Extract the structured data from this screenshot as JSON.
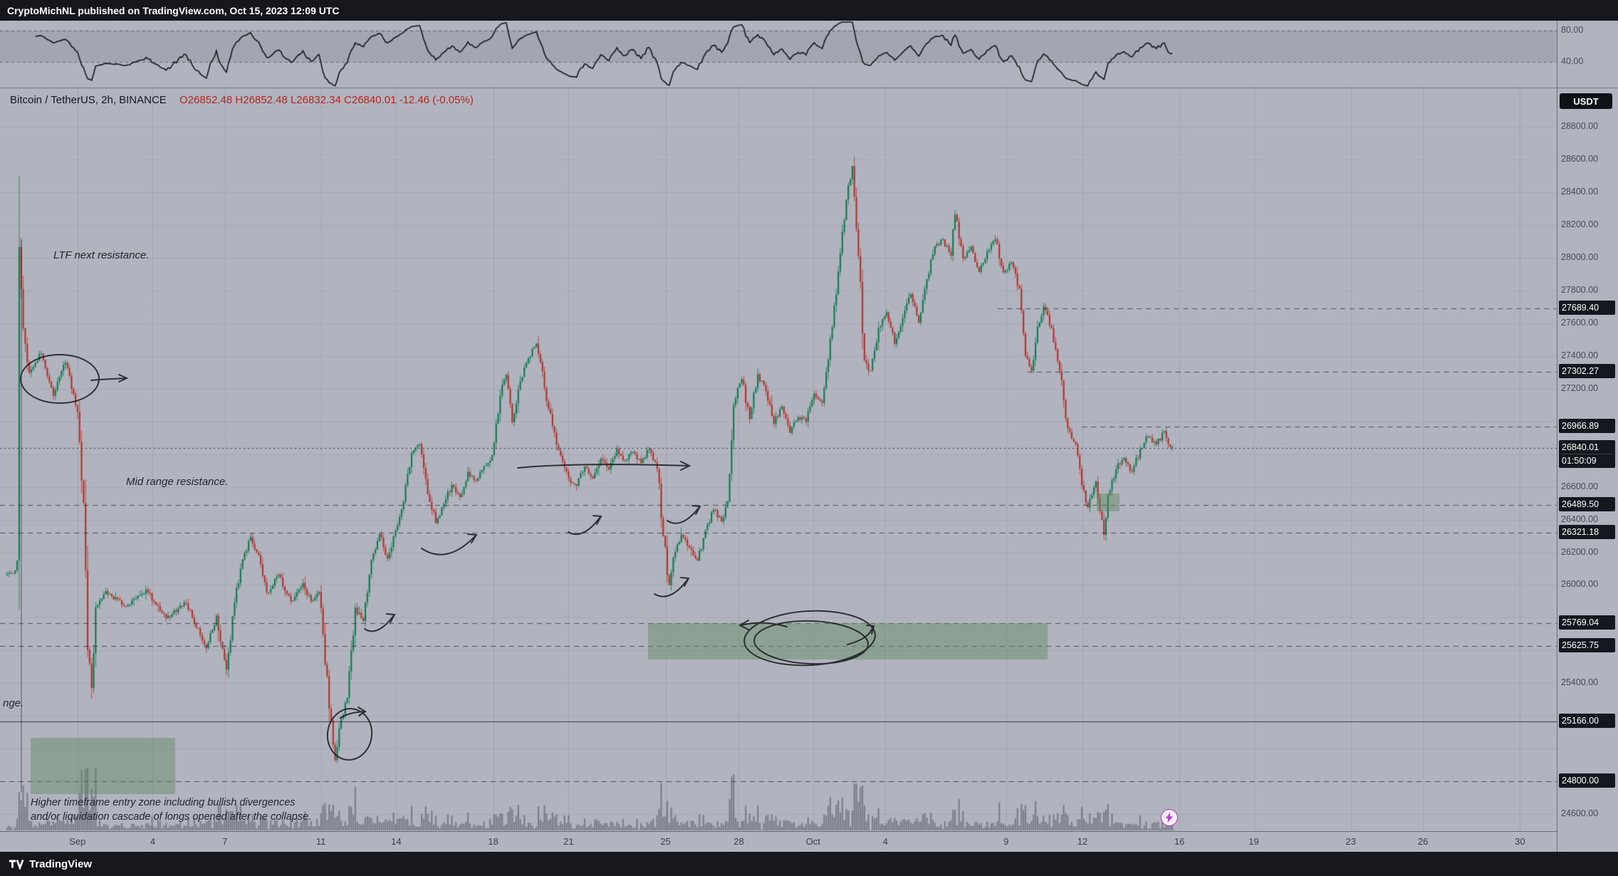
{
  "titlebar": {
    "text": "CryptoMichNL published on TradingView.com, Oct 15, 2023 12:09 UTC"
  },
  "legend": {
    "symbol": "Bitcoin / TetherUS, 2h, BINANCE",
    "values": "O26852.48  H26852.48  L26832.34  C26840.01  -12.46 (-0.05%)"
  },
  "quote_badge": "USDT",
  "annotations": {
    "ltf": "LTF next resistance.",
    "mid": "Mid range resistance.",
    "left_cut": "nge.",
    "entry_line1": "Higher timeframe entry zone including bullish divergences",
    "entry_line2": "and/or liquidation cascade of longs opened after the collapse."
  },
  "footer": {
    "brand": "TradingView"
  },
  "indicator_pane": {
    "type": "RSI",
    "period": 14,
    "upper_label": "80.00",
    "lower_label": "40.00",
    "upper": 80,
    "lower": 40
  },
  "price_axis": {
    "regular_labels": [
      "28800.00",
      "28600.00",
      "28400.00",
      "28200.00",
      "28000.00",
      "27800.00",
      "27600.00",
      "27400.00",
      "27200.00",
      "26600.00",
      "26400.00",
      "26200.00",
      "26000.00",
      "25400.00",
      "24600.00"
    ],
    "levels": [
      {
        "label": "27689.40",
        "price": 27689.4,
        "style": "dashed",
        "from": 0.641
      },
      {
        "label": "27302.27",
        "price": 27302.27,
        "style": "dashed",
        "from": 0.66
      },
      {
        "label": "26966.89",
        "price": 26966.89,
        "style": "dashed",
        "from": 0.695
      },
      {
        "label": "26489.50",
        "price": 26489.5,
        "style": "dashed",
        "from": 0
      },
      {
        "label": "26321.18",
        "price": 26321.18,
        "style": "dashed",
        "from": 0
      },
      {
        "label": "25769.04",
        "price": 25769.04,
        "style": "dashed",
        "from": 0
      },
      {
        "label": "25625.75",
        "price": 25625.75,
        "style": "dashed",
        "from": 0
      },
      {
        "label": "25166.00",
        "price": 25166.0,
        "style": "solid",
        "from": 0
      },
      {
        "label": "24800.00",
        "price": 24800.0,
        "style": "dashed",
        "from": 0
      }
    ],
    "current": {
      "label": "26840.01",
      "countdown": "01:50:09",
      "price": 26840.01
    }
  },
  "time_axis": {
    "labels": [
      {
        "text": "Sep",
        "f": 0.04783
      },
      {
        "text": "4",
        "f": 0.09439
      },
      {
        "text": "7",
        "f": 0.13903
      },
      {
        "text": "11",
        "f": 0.19834
      },
      {
        "text": "14",
        "f": 0.2449
      },
      {
        "text": "18",
        "f": 0.30485
      },
      {
        "text": "21",
        "f": 0.3514
      },
      {
        "text": "25",
        "f": 0.41135
      },
      {
        "text": "28",
        "f": 0.45663
      },
      {
        "text": "Oct",
        "f": 0.50255
      },
      {
        "text": "4",
        "f": 0.54719
      },
      {
        "text": "9",
        "f": 0.62181
      },
      {
        "text": "12",
        "f": 0.66901
      },
      {
        "text": "16",
        "f": 0.72895
      },
      {
        "text": "19",
        "f": 0.77487
      },
      {
        "text": "23",
        "f": 0.83482
      },
      {
        "text": "26",
        "f": 0.87946
      },
      {
        "text": "30",
        "f": 0.93941
      }
    ]
  },
  "zones": [
    {
      "name": "htf-entry-zone",
      "f1": 0.0197,
      "f2": 0.1125,
      "p1": 25065,
      "p2": 24722
    },
    {
      "name": "mid-range-entry-zone",
      "f1": 0.4163,
      "f2": 0.6729,
      "p1": 25769,
      "p2": 25545
    },
    {
      "name": "demand-box",
      "f1": 0.7045,
      "f2": 0.7191,
      "p1": 26560,
      "p2": 26450
    }
  ],
  "colors": {
    "bg": "#b1b4bf",
    "up": "#157a50",
    "down": "#b0362f",
    "badge_bg": "#14171d",
    "axis_text": "#474b55",
    "level_line": "#2a2d35",
    "volume": "rgba(70,74,86,0.5)",
    "rsi_line": "#15171c",
    "zone_fill": "rgba(96,138,96,0.45)",
    "accent_flash": "#ad3bbf"
  },
  "chart_data": {
    "type": "candlestick",
    "symbol": "BTCUSDT",
    "exchange": "BINANCE",
    "timeframe": "2h",
    "title": "Bitcoin / TetherUS 2h with RSI pane, horizontal levels and entry zones",
    "note": "Approximate 2h price path Aug 29 - Oct 15 2023; anchors are [candle_index, price]",
    "candles_total": 580,
    "price_range": [
      24496,
      29040
    ],
    "last_close": 26840.01,
    "indicator": {
      "type": "RSI",
      "period": 14,
      "bands": [
        40,
        80
      ]
    },
    "anchors": [
      [
        0,
        26060
      ],
      [
        5,
        26090
      ],
      [
        6,
        26150
      ],
      [
        7,
        28140
      ],
      [
        9,
        27550
      ],
      [
        12,
        27300
      ],
      [
        18,
        27420
      ],
      [
        24,
        27160
      ],
      [
        30,
        27360
      ],
      [
        36,
        27060
      ],
      [
        39,
        26500
      ],
      [
        41,
        25600
      ],
      [
        43,
        25370
      ],
      [
        45,
        25850
      ],
      [
        50,
        25960
      ],
      [
        60,
        25870
      ],
      [
        70,
        25970
      ],
      [
        80,
        25800
      ],
      [
        90,
        25890
      ],
      [
        100,
        25610
      ],
      [
        105,
        25810
      ],
      [
        110,
        25480
      ],
      [
        114,
        25900
      ],
      [
        118,
        26160
      ],
      [
        122,
        26290
      ],
      [
        126,
        26180
      ],
      [
        130,
        25950
      ],
      [
        136,
        26060
      ],
      [
        142,
        25900
      ],
      [
        148,
        26010
      ],
      [
        152,
        25900
      ],
      [
        156,
        25960
      ],
      [
        158,
        25700
      ],
      [
        161,
        25250
      ],
      [
        164,
        24930
      ],
      [
        167,
        25180
      ],
      [
        170,
        25310
      ],
      [
        174,
        25860
      ],
      [
        178,
        25780
      ],
      [
        182,
        26160
      ],
      [
        186,
        26310
      ],
      [
        190,
        26160
      ],
      [
        194,
        26330
      ],
      [
        198,
        26510
      ],
      [
        202,
        26810
      ],
      [
        206,
        26860
      ],
      [
        210,
        26560
      ],
      [
        214,
        26380
      ],
      [
        218,
        26500
      ],
      [
        222,
        26610
      ],
      [
        226,
        26540
      ],
      [
        230,
        26690
      ],
      [
        234,
        26640
      ],
      [
        238,
        26730
      ],
      [
        242,
        26790
      ],
      [
        246,
        27160
      ],
      [
        249,
        27290
      ],
      [
        252,
        27000
      ],
      [
        255,
        27190
      ],
      [
        258,
        27330
      ],
      [
        262,
        27440
      ],
      [
        264,
        27480
      ],
      [
        268,
        27210
      ],
      [
        272,
        26970
      ],
      [
        276,
        26790
      ],
      [
        280,
        26650
      ],
      [
        284,
        26610
      ],
      [
        288,
        26730
      ],
      [
        292,
        26650
      ],
      [
        296,
        26770
      ],
      [
        300,
        26710
      ],
      [
        304,
        26830
      ],
      [
        308,
        26760
      ],
      [
        312,
        26810
      ],
      [
        316,
        26750
      ],
      [
        320,
        26830
      ],
      [
        324,
        26710
      ],
      [
        327,
        26310
      ],
      [
        330,
        25990
      ],
      [
        333,
        26210
      ],
      [
        336,
        26310
      ],
      [
        340,
        26230
      ],
      [
        344,
        26150
      ],
      [
        348,
        26330
      ],
      [
        352,
        26460
      ],
      [
        356,
        26390
      ],
      [
        359,
        26510
      ],
      [
        362,
        27110
      ],
      [
        366,
        27260
      ],
      [
        370,
        27010
      ],
      [
        374,
        27290
      ],
      [
        378,
        27190
      ],
      [
        382,
        26990
      ],
      [
        386,
        27090
      ],
      [
        390,
        26930
      ],
      [
        394,
        27030
      ],
      [
        398,
        27000
      ],
      [
        402,
        27170
      ],
      [
        406,
        27110
      ],
      [
        410,
        27510
      ],
      [
        414,
        27910
      ],
      [
        418,
        28360
      ],
      [
        421,
        28560
      ],
      [
        424,
        28010
      ],
      [
        427,
        27360
      ],
      [
        430,
        27310
      ],
      [
        434,
        27570
      ],
      [
        438,
        27670
      ],
      [
        442,
        27470
      ],
      [
        446,
        27630
      ],
      [
        450,
        27780
      ],
      [
        454,
        27610
      ],
      [
        458,
        27870
      ],
      [
        462,
        28070
      ],
      [
        466,
        28110
      ],
      [
        470,
        28010
      ],
      [
        472,
        28270
      ],
      [
        476,
        27990
      ],
      [
        480,
        28070
      ],
      [
        484,
        27910
      ],
      [
        488,
        28040
      ],
      [
        492,
        28110
      ],
      [
        496,
        27910
      ],
      [
        500,
        27970
      ],
      [
        504,
        27810
      ],
      [
        507,
        27390
      ],
      [
        510,
        27310
      ],
      [
        513,
        27570
      ],
      [
        516,
        27700
      ],
      [
        520,
        27570
      ],
      [
        524,
        27310
      ],
      [
        528,
        26960
      ],
      [
        532,
        26860
      ],
      [
        535,
        26610
      ],
      [
        538,
        26470
      ],
      [
        542,
        26630
      ],
      [
        546,
        26310
      ],
      [
        548,
        26560
      ],
      [
        552,
        26710
      ],
      [
        556,
        26780
      ],
      [
        560,
        26690
      ],
      [
        564,
        26830
      ],
      [
        568,
        26910
      ],
      [
        572,
        26860
      ],
      [
        576,
        26940
      ],
      [
        579,
        26840
      ]
    ]
  }
}
